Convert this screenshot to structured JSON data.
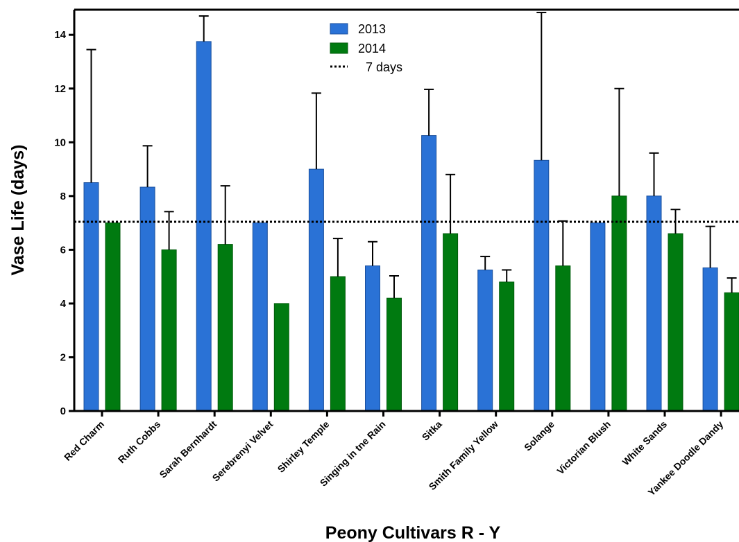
{
  "chart_data": {
    "type": "bar",
    "xlabel": "Peony Cultivars R - Y",
    "ylabel": "Vase Life (days)",
    "ylim": [
      0,
      15
    ],
    "yticks": [
      0,
      2,
      4,
      6,
      8,
      10,
      12,
      14
    ],
    "categories": [
      "Red Charm",
      "Ruth Cobbs",
      "Sarah Bernhardt",
      "Serebrenyi Velvet",
      "Shirley Temple",
      "Singing in tne Rain",
      "Sitka",
      "Smith Family Yellow",
      "Solange",
      "Victorian Blush",
      "White Sands",
      "Yankee Doodle Dandy"
    ],
    "series": [
      {
        "name": "2013",
        "color": "#2a72d6",
        "values": [
          8.5,
          8.33,
          13.75,
          7.0,
          9.0,
          5.4,
          10.25,
          5.25,
          9.33,
          7.0,
          8.0,
          5.33
        ],
        "error_upper": [
          13.45,
          9.87,
          14.7,
          7.0,
          11.83,
          6.3,
          11.97,
          5.75,
          14.83,
          7.0,
          9.6,
          6.87
        ]
      },
      {
        "name": "2014",
        "color": "#007a10",
        "values": [
          7.0,
          6.0,
          6.2,
          4.0,
          5.0,
          4.2,
          6.6,
          4.8,
          5.4,
          8.0,
          6.6,
          4.4
        ],
        "error_upper": [
          7.0,
          7.42,
          8.38,
          4.0,
          6.42,
          5.03,
          8.8,
          5.25,
          7.07,
          12.0,
          7.5,
          4.95
        ]
      }
    ],
    "reference_line": {
      "label": "7 days",
      "value": 7.04,
      "style": "dotted"
    },
    "legend": {
      "position": "top-center",
      "entries": [
        "2013",
        "2014",
        "7 days"
      ]
    },
    "grid": false
  }
}
